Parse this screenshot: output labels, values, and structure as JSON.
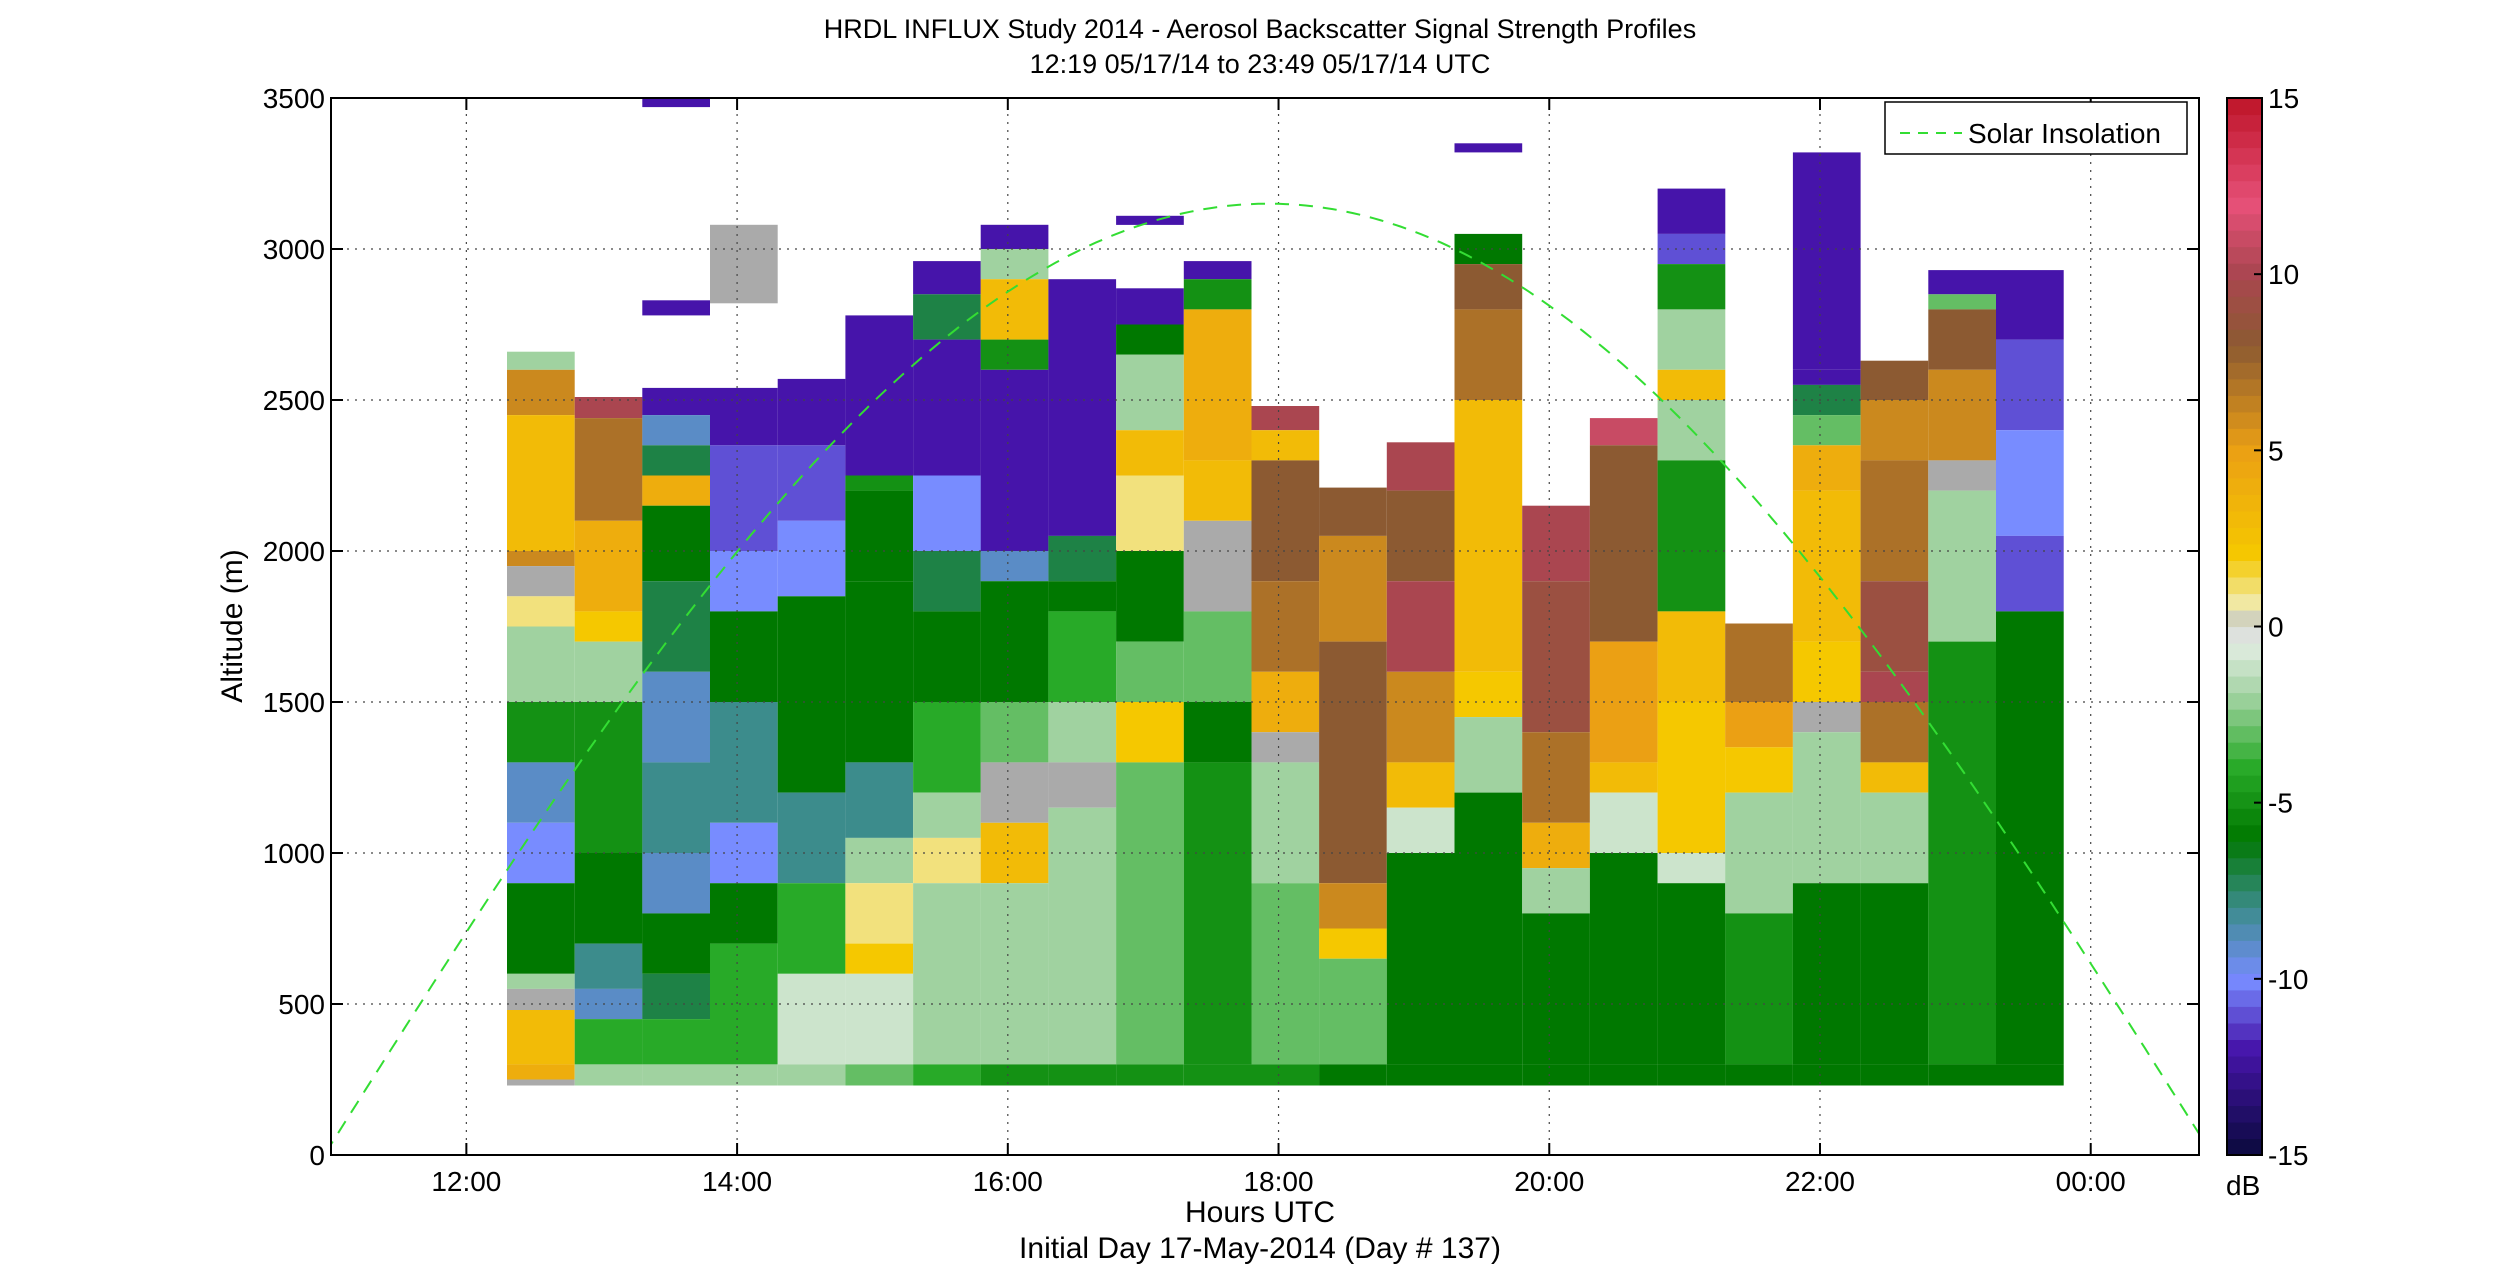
{
  "chart_data": {
    "type": "heatmap",
    "title": "HRDL INFLUX Study 2014 - Aerosol Backscatter Signal Strength Profiles",
    "subtitle": "12:19 05/17/14 to 23:49 05/17/14  UTC",
    "xlabel": "Hours UTC",
    "xlabel2": "Initial Day 17-May-2014 (Day # 137)",
    "ylabel": "Altitude (m)",
    "x_ticks": [
      "12:00",
      "14:00",
      "16:00",
      "18:00",
      "20:00",
      "22:00",
      "00:00"
    ],
    "x_tick_hours": [
      12,
      14,
      16,
      18,
      20,
      22,
      24
    ],
    "xlim_hours": [
      11.0,
      24.8
    ],
    "y_ticks": [
      "0",
      "500",
      "1000",
      "1500",
      "2000",
      "2500",
      "3000",
      "3500"
    ],
    "y_tick_values": [
      0,
      500,
      1000,
      1500,
      2000,
      2500,
      3000,
      3500
    ],
    "ylim": [
      0,
      3500
    ],
    "grid": true,
    "legend_position": "top-right",
    "legend": [
      {
        "name": "Solar Insolation",
        "color": "#33dd33",
        "style": "dashed"
      }
    ],
    "colorbar": {
      "label": "dB",
      "range": [
        -15,
        15
      ],
      "ticks": [
        "15",
        "10",
        "5",
        "0",
        "-5",
        "-10",
        "-15"
      ],
      "tick_values": [
        15,
        10,
        5,
        0,
        -5,
        -10,
        -15
      ]
    },
    "profile_bottom_m": 230,
    "profiles": [
      {
        "time": 12.55,
        "top": 2660,
        "segments": [
          [
            2660,
            -2
          ],
          [
            2600,
            6
          ],
          [
            2450,
            3
          ],
          [
            2000,
            6
          ],
          [
            1950,
            0
          ],
          [
            1850,
            1
          ],
          [
            1750,
            -2
          ],
          [
            1500,
            -5
          ],
          [
            1300,
            -9
          ],
          [
            1100,
            -10
          ],
          [
            900,
            -6
          ],
          [
            600,
            -2
          ],
          [
            550,
            0
          ],
          [
            480,
            3
          ],
          [
            300,
            4
          ],
          [
            250,
            0
          ]
        ]
      },
      {
        "time": 13.05,
        "top": 2510,
        "segments": [
          [
            2510,
            10
          ],
          [
            2440,
            7
          ],
          [
            2100,
            4
          ],
          [
            1800,
            2
          ],
          [
            1700,
            -2
          ],
          [
            1500,
            -5
          ],
          [
            1000,
            -6
          ],
          [
            700,
            -8
          ],
          [
            550,
            -9
          ],
          [
            450,
            -4
          ],
          [
            300,
            -2
          ]
        ]
      },
      {
        "time": 13.55,
        "top": 2540,
        "segments": [
          [
            2540,
            -12
          ],
          [
            2450,
            -9
          ],
          [
            2350,
            -7
          ],
          [
            2250,
            4
          ],
          [
            2150,
            -6
          ],
          [
            1900,
            -7
          ],
          [
            1600,
            -9
          ],
          [
            1300,
            -8
          ],
          [
            1000,
            -9
          ],
          [
            800,
            -6
          ],
          [
            600,
            -7
          ],
          [
            450,
            -4
          ],
          [
            300,
            -2
          ]
        ]
      },
      {
        "time": 14.05,
        "top": 2540,
        "segments": [
          [
            2540,
            -12
          ],
          [
            2350,
            -11
          ],
          [
            2000,
            -10
          ],
          [
            1800,
            -6
          ],
          [
            1500,
            -8
          ],
          [
            1100,
            -10
          ],
          [
            900,
            -6
          ],
          [
            700,
            -4
          ],
          [
            300,
            -2
          ]
        ]
      },
      {
        "time": 14.55,
        "top": 2570,
        "segments": [
          [
            2570,
            -12
          ],
          [
            2350,
            -11
          ],
          [
            2100,
            -10
          ],
          [
            1850,
            -6
          ],
          [
            1500,
            -6
          ],
          [
            1200,
            -8
          ],
          [
            900,
            -4
          ],
          [
            600,
            -1
          ],
          [
            300,
            -2
          ]
        ]
      },
      {
        "time": 15.05,
        "top": 2780,
        "segments": [
          [
            2780,
            -12
          ],
          [
            2250,
            -5
          ],
          [
            2200,
            -6
          ],
          [
            1900,
            -6
          ],
          [
            1300,
            -8
          ],
          [
            1050,
            -2
          ],
          [
            900,
            1
          ],
          [
            700,
            2
          ],
          [
            600,
            -1
          ],
          [
            300,
            -3
          ]
        ]
      },
      {
        "time": 15.55,
        "top": 2960,
        "segments": [
          [
            2960,
            -12
          ],
          [
            2850,
            -7
          ],
          [
            2700,
            -12
          ],
          [
            2250,
            -10
          ],
          [
            2000,
            -7
          ],
          [
            1800,
            -6
          ],
          [
            1500,
            -4
          ],
          [
            1200,
            -2
          ],
          [
            1050,
            1
          ],
          [
            900,
            -2
          ],
          [
            300,
            -4
          ]
        ]
      },
      {
        "time": 16.05,
        "top": 3080,
        "segments": [
          [
            3080,
            -12
          ],
          [
            3000,
            -2
          ],
          [
            2900,
            3
          ],
          [
            2700,
            -5
          ],
          [
            2600,
            -12
          ],
          [
            2000,
            -9
          ],
          [
            1900,
            -6
          ],
          [
            1500,
            -3
          ],
          [
            1300,
            0
          ],
          [
            1100,
            3
          ],
          [
            900,
            -2
          ],
          [
            300,
            -5
          ]
        ]
      },
      {
        "time": 16.55,
        "top": 2900,
        "segments": [
          [
            2900,
            -12
          ],
          [
            2050,
            -7
          ],
          [
            1900,
            -6
          ],
          [
            1800,
            -4
          ],
          [
            1500,
            -2
          ],
          [
            1300,
            0
          ],
          [
            1150,
            -2
          ],
          [
            300,
            -5
          ]
        ]
      },
      {
        "time": 17.05,
        "top": 2870,
        "segments": [
          [
            2870,
            -12
          ],
          [
            2750,
            -6
          ],
          [
            2650,
            -2
          ],
          [
            2400,
            3
          ],
          [
            2250,
            1
          ],
          [
            2000,
            -6
          ],
          [
            1700,
            -3
          ],
          [
            1500,
            2
          ],
          [
            1300,
            -3
          ],
          [
            300,
            -5
          ]
        ]
      },
      {
        "time": 17.55,
        "top": 2960,
        "segments": [
          [
            2960,
            -12
          ],
          [
            2900,
            -5
          ],
          [
            2800,
            4
          ],
          [
            2300,
            3
          ],
          [
            2100,
            0
          ],
          [
            1800,
            -3
          ],
          [
            1500,
            -6
          ],
          [
            1300,
            -5
          ],
          [
            300,
            -5
          ]
        ]
      },
      {
        "time": 18.05,
        "top": 2480,
        "segments": [
          [
            2480,
            10
          ],
          [
            2400,
            3
          ],
          [
            2300,
            8
          ],
          [
            1900,
            7
          ],
          [
            1600,
            4
          ],
          [
            1400,
            0
          ],
          [
            1300,
            -2
          ],
          [
            900,
            -3
          ],
          [
            300,
            -5
          ]
        ]
      },
      {
        "time": 18.55,
        "top": 2210,
        "segments": [
          [
            2210,
            8
          ],
          [
            2050,
            6
          ],
          [
            1700,
            8
          ],
          [
            900,
            6
          ],
          [
            750,
            2
          ],
          [
            650,
            -3
          ],
          [
            300,
            -6
          ]
        ]
      },
      {
        "time": 19.05,
        "top": 2360,
        "segments": [
          [
            2360,
            10
          ],
          [
            2200,
            8
          ],
          [
            1900,
            10
          ],
          [
            1600,
            6
          ],
          [
            1300,
            3
          ],
          [
            1150,
            -1
          ],
          [
            1000,
            -6
          ],
          [
            300,
            -6
          ]
        ]
      },
      {
        "time": 19.55,
        "top": 3050,
        "segments": [
          [
            3050,
            -6
          ],
          [
            2950,
            8
          ],
          [
            2800,
            7
          ],
          [
            2500,
            3
          ],
          [
            1600,
            2
          ],
          [
            1450,
            -2
          ],
          [
            1200,
            -6
          ],
          [
            300,
            -6
          ]
        ]
      },
      {
        "time": 20.05,
        "top": 2150,
        "segments": [
          [
            2150,
            10
          ],
          [
            1900,
            9
          ],
          [
            1400,
            7
          ],
          [
            1100,
            4
          ],
          [
            950,
            -2
          ],
          [
            800,
            -6
          ],
          [
            300,
            -6
          ]
        ]
      },
      {
        "time": 20.55,
        "top": 2440,
        "segments": [
          [
            2440,
            11
          ],
          [
            2350,
            8
          ],
          [
            1700,
            5
          ],
          [
            1300,
            3
          ],
          [
            1200,
            -1
          ],
          [
            1000,
            -6
          ],
          [
            300,
            -6
          ]
        ]
      },
      {
        "time": 21.05,
        "top": 3200,
        "segments": [
          [
            3200,
            -12
          ],
          [
            3050,
            -11
          ],
          [
            2950,
            -5
          ],
          [
            2800,
            -2
          ],
          [
            2600,
            3
          ],
          [
            2500,
            -2
          ],
          [
            2300,
            -5
          ],
          [
            1800,
            3
          ],
          [
            1500,
            2
          ],
          [
            1000,
            -1
          ],
          [
            900,
            -6
          ],
          [
            300,
            -6
          ]
        ]
      },
      {
        "time": 21.55,
        "top": 1760,
        "segments": [
          [
            1760,
            7
          ],
          [
            1500,
            5
          ],
          [
            1350,
            2
          ],
          [
            1200,
            -2
          ],
          [
            800,
            -5
          ],
          [
            300,
            -6
          ]
        ]
      },
      {
        "time": 22.05,
        "top": 3320,
        "segments": [
          [
            3320,
            -12
          ],
          [
            3000,
            -12
          ],
          [
            2600,
            -12
          ],
          [
            2550,
            -7
          ],
          [
            2450,
            -3
          ],
          [
            2350,
            4
          ],
          [
            2200,
            3
          ],
          [
            1700,
            2
          ],
          [
            1500,
            0
          ],
          [
            1400,
            -2
          ],
          [
            900,
            -6
          ],
          [
            300,
            -6
          ]
        ]
      },
      {
        "time": 22.55,
        "top": 2630,
        "segments": [
          [
            2630,
            8
          ],
          [
            2500,
            6
          ],
          [
            2300,
            7
          ],
          [
            1900,
            9
          ],
          [
            1600,
            10
          ],
          [
            1500,
            7
          ],
          [
            1300,
            3
          ],
          [
            1200,
            -2
          ],
          [
            900,
            -6
          ],
          [
            300,
            -6
          ]
        ]
      },
      {
        "time": 23.05,
        "top": 2930,
        "segments": [
          [
            2930,
            -12
          ],
          [
            2850,
            -3
          ],
          [
            2800,
            8
          ],
          [
            2600,
            6
          ],
          [
            2300,
            0
          ],
          [
            2200,
            -2
          ],
          [
            1700,
            -5
          ],
          [
            300,
            -6
          ]
        ]
      },
      {
        "time": 23.55,
        "top": 2930,
        "segments": [
          [
            2930,
            -12
          ],
          [
            2700,
            -11
          ],
          [
            2400,
            -10
          ],
          [
            2050,
            -11
          ],
          [
            1800,
            -6
          ],
          [
            1500,
            -6
          ],
          [
            300,
            -6
          ]
        ]
      }
    ],
    "isolated_blocks": [
      {
        "time": 13.55,
        "range": [
          3470,
          3500
        ],
        "value": -12
      },
      {
        "time": 13.55,
        "range": [
          2780,
          2830
        ],
        "value": -12
      },
      {
        "time": 14.05,
        "range": [
          2820,
          3080
        ],
        "value": 0
      },
      {
        "time": 17.05,
        "range": [
          3080,
          3110
        ],
        "value": -12
      },
      {
        "time": 19.55,
        "range": [
          3320,
          3350
        ],
        "value": -12
      }
    ],
    "solar_insolation_curve": {
      "peak_hour": 17.8,
      "peak_altitude": 3150,
      "zero_hours": [
        10.95,
        24.9
      ]
    }
  }
}
